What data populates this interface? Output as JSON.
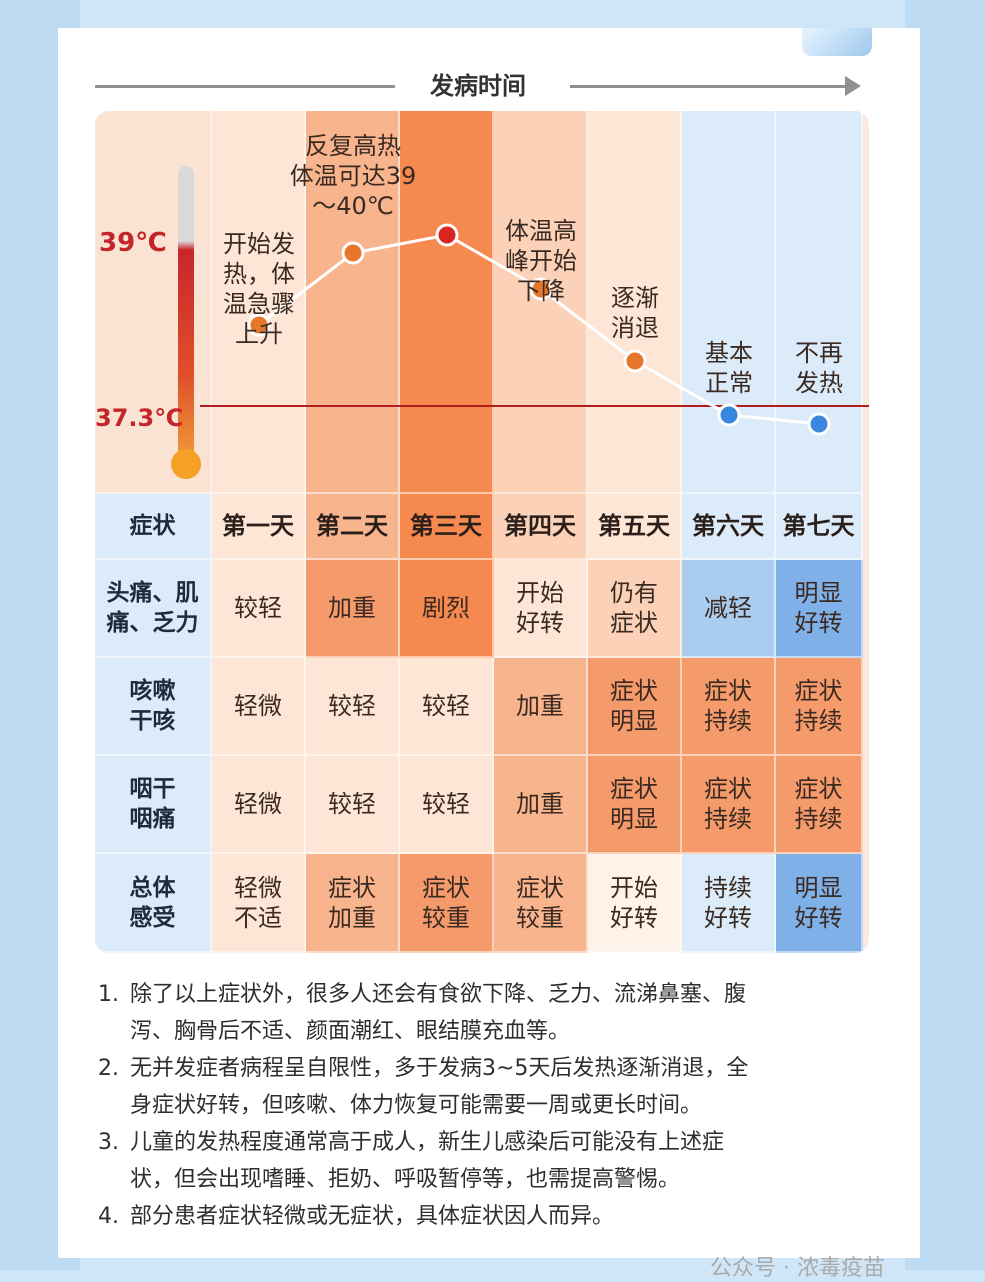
{
  "timeline": {
    "label": "发病时间"
  },
  "temperature": {
    "high_label": "39℃",
    "baseline_label": "37.3℃"
  },
  "chart_data": {
    "type": "line",
    "x": [
      "第一天",
      "第二天",
      "第三天",
      "第四天",
      "第五天",
      "第六天",
      "第七天"
    ],
    "series": [
      {
        "values": [
          38.2,
          39.0,
          39.2,
          38.6,
          37.8,
          37.2,
          37.1
        ]
      }
    ],
    "reference_line": 37.3,
    "annotations": [
      "开始发热，体温急骤上升",
      "反复高热体温可达39～40℃",
      "体温高峰开始下降",
      "逐渐消退",
      "基本正常",
      "不再发热"
    ]
  },
  "phase_labels": {
    "d1": [
      "开始发",
      "热，体",
      "温急骤",
      "上升"
    ],
    "d2": [
      "反复高热",
      "体温可达39",
      "～40℃"
    ],
    "d4": [
      "体温高",
      "峰开始",
      "下降"
    ],
    "d5": [
      "逐渐",
      "消退"
    ],
    "d6": [
      "基本",
      "正常"
    ],
    "d7": [
      "不再",
      "发热"
    ]
  },
  "table": {
    "corner": "症状",
    "days": [
      "第一天",
      "第二天",
      "第三天",
      "第四天",
      "第五天",
      "第六天",
      "第七天"
    ],
    "rows": [
      {
        "head": [
          "头痛、肌",
          "痛、乏力"
        ],
        "cells": [
          [
            "较轻"
          ],
          [
            "加重"
          ],
          [
            "剧烈"
          ],
          [
            "开始",
            "好转"
          ],
          [
            "仍有",
            "症状"
          ],
          [
            "减轻"
          ],
          [
            "明显",
            "好转"
          ]
        ]
      },
      {
        "head": [
          "咳嗽",
          "干咳"
        ],
        "cells": [
          [
            "轻微"
          ],
          [
            "较轻"
          ],
          [
            "较轻"
          ],
          [
            "加重"
          ],
          [
            "症状",
            "明显"
          ],
          [
            "症状",
            "持续"
          ],
          [
            "症状",
            "持续"
          ]
        ]
      },
      {
        "head": [
          "咽干",
          "咽痛"
        ],
        "cells": [
          [
            "轻微"
          ],
          [
            "较轻"
          ],
          [
            "较轻"
          ],
          [
            "加重"
          ],
          [
            "症状",
            "明显"
          ],
          [
            "症状",
            "持续"
          ],
          [
            "症状",
            "持续"
          ]
        ]
      },
      {
        "head": [
          "总体",
          "感受"
        ],
        "cells": [
          [
            "轻微",
            "不适"
          ],
          [
            "症状",
            "加重"
          ],
          [
            "症状",
            "较重"
          ],
          [
            "症状",
            "较重"
          ],
          [
            "开始",
            "好转"
          ],
          [
            "持续",
            "好转"
          ],
          [
            "明显",
            "好转"
          ]
        ]
      }
    ],
    "colors": {
      "peak": "#f5894f",
      "strong": "#f59a6a",
      "medium": "#f8b48d",
      "light": "#fbd2b8",
      "pale": "#fde6d6",
      "blue_light": "#dcebf9",
      "blue_mid": "#aacdef",
      "blue_strong": "#7fb0e8",
      "dot_orange": "#e7772a",
      "dot_red": "#d9251f",
      "dot_blue": "#3a87e0",
      "line_red": "#b21f22"
    }
  },
  "notes": [
    {
      "num": "1.",
      "lines": [
        "除了以上症状外，很多人还会有食欲下降、乏力、流涕鼻塞、腹",
        "泻、胸骨后不适、颜面潮红、眼结膜充血等。"
      ]
    },
    {
      "num": "2.",
      "lines": [
        "无并发症者病程呈自限性，多于发病3~5天后发热逐渐消退，全",
        "身症状好转，但咳嗽、体力恢复可能需要一周或更长时间。"
      ]
    },
    {
      "num": "3.",
      "lines": [
        "儿童的发热程度通常高于成人，新生儿感染后可能没有上述症",
        "状，但会出现嗜睡、拒奶、呼吸暂停等，也需提高警惕。"
      ]
    },
    {
      "num": "4.",
      "lines": [
        "部分患者症状轻微或无症状，具体症状因人而异。"
      ]
    }
  ],
  "footer": "公众号 · 浓毒疫苗"
}
